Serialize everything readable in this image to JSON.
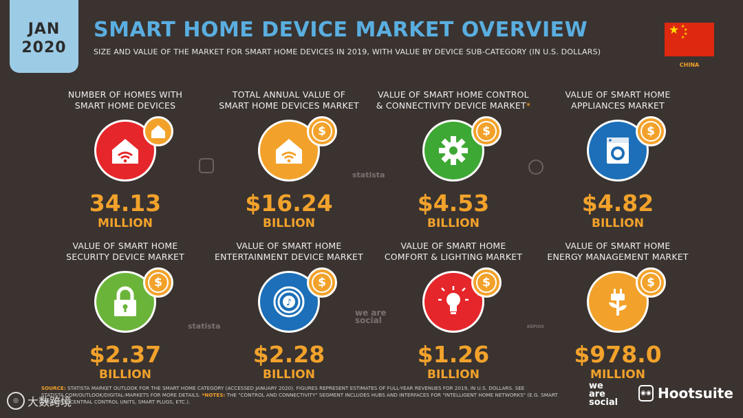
{
  "date_tab": {
    "month": "JAN",
    "year": "2020"
  },
  "header": {
    "title": "SMART HOME DEVICE MARKET OVERVIEW",
    "subtitle": "SIZE AND VALUE OF THE MARKET FOR SMART HOME DEVICES IN 2019, WITH VALUE BY DEVICE SUB-CATEGORY (IN U.S. DOLLARS)"
  },
  "country": {
    "name": "CHINA"
  },
  "colors": {
    "accent_orange": "#f2a22b",
    "title_blue": "#5aaee0",
    "background": "#3a3330"
  },
  "cards": [
    {
      "label_line1": "NUMBER OF HOMES WITH",
      "label_line2": "SMART HOME DEVICES",
      "value": "34.13",
      "unit": "MILLION",
      "icon": "home-icon",
      "badge": "home-icon",
      "color": "#e5262a"
    },
    {
      "label_line1": "TOTAL ANNUAL VALUE OF",
      "label_line2": "SMART HOME DEVICES MARKET",
      "value": "$16.24",
      "unit": "BILLION",
      "icon": "home-wifi-icon",
      "badge": "dollar-icon",
      "color": "#f2a22b"
    },
    {
      "label_line1": "VALUE OF SMART HOME CONTROL",
      "label_line2": "& CONNECTIVITY DEVICE MARKET",
      "asterisk": "*",
      "value": "$4.53",
      "unit": "BILLION",
      "icon": "gear-icon",
      "badge": "dollar-icon",
      "color": "#3ea835"
    },
    {
      "label_line1": "VALUE OF SMART HOME",
      "label_line2": "APPLIANCES MARKET",
      "value": "$4.82",
      "unit": "BILLION",
      "icon": "washing-machine-icon",
      "badge": "dollar-icon",
      "color": "#1c6fb8"
    },
    {
      "label_line1": "VALUE OF SMART HOME",
      "label_line2": "SECURITY DEVICE MARKET",
      "value": "$2.37",
      "unit": "BILLION",
      "icon": "lock-icon",
      "badge": "dollar-icon",
      "color": "#6bb43a"
    },
    {
      "label_line1": "VALUE OF SMART HOME",
      "label_line2": "ENTERTAINMENT DEVICE MARKET",
      "value": "$2.28",
      "unit": "BILLION",
      "icon": "music-speaker-icon",
      "badge": "dollar-icon",
      "color": "#1c6fb8"
    },
    {
      "label_line1": "VALUE OF SMART HOME",
      "label_line2": "COMFORT & LIGHTING MARKET",
      "value": "$1.26",
      "unit": "BILLION",
      "icon": "light-bulb-icon",
      "badge": "dollar-icon",
      "color": "#e5262a"
    },
    {
      "label_line1": "VALUE OF SMART HOME",
      "label_line2": "ENERGY MANAGEMENT MARKET",
      "value": "$978.0",
      "unit": "MILLION",
      "icon": "plug-plant-icon",
      "badge": "dollar-icon",
      "color": "#f2a22b"
    }
  ],
  "watermarks": {
    "statista": "statista",
    "kepios": "KEPIOS",
    "we_are_social": "we are social"
  },
  "footer": {
    "source_label": "SOURCE:",
    "source_text": "STATISTA MARKET OUTLOOK FOR THE SMART HOME CATEGORY (ACCESSED JANUARY 2020). FIGURES REPRESENT ESTIMATES OF FULL-YEAR REVENUES FOR 2019, IN U.S. DOLLARS.",
    "see_text": "SEE STATISTA.COM/OUTLOOK/DIGITAL-MARKETS FOR MORE DETAILS.",
    "notes_label": "*NOTES:",
    "notes_text": "THE \"CONTROL AND CONNECTIVITY\" SEGMENT INCLUDES HUBS AND INTERFACES FOR \"INTELLIGENT HOME NETWORKS\" (E.G. SMART SPEAKERS, CENTRAL CONTROL UNITS, SMART PLUGS, ETC.)."
  },
  "logos": {
    "we_are_social_1": "we",
    "we_are_social_2": "are",
    "we_are_social_3": "social",
    "hootsuite": "Hootsuite"
  },
  "corner_watermark": {
    "text": "大数跨境"
  }
}
